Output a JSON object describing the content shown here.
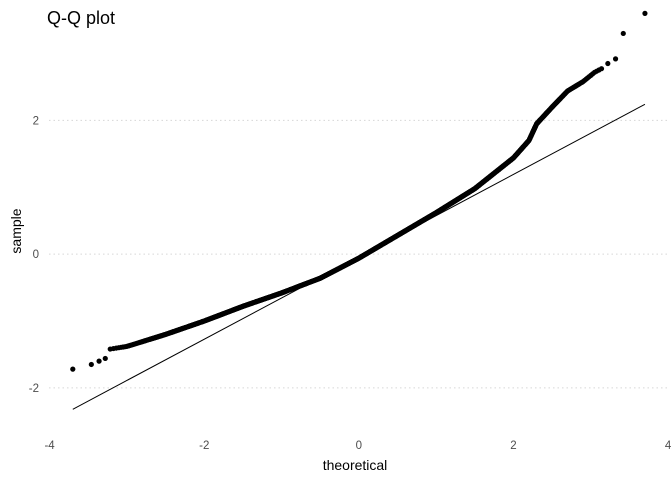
{
  "chart_data": {
    "type": "scatter",
    "title": "Q-Q plot",
    "xlabel": "theoretical",
    "ylabel": "sample",
    "xlim": [
      -4.15,
      4.05
    ],
    "ylim": [
      -2.6,
      3.8
    ],
    "x_ticks": [
      -4,
      -2,
      0,
      2,
      4
    ],
    "x_tick_labels": [
      "-4",
      "-2",
      "0",
      "2",
      "4"
    ],
    "y_ticks": [
      -2,
      0,
      2
    ],
    "y_tick_labels": [
      "-2",
      "0",
      "2"
    ],
    "grid": "horizontal dotted lines at y ticks",
    "legend": "none",
    "colors": {
      "points": "#000000",
      "reference_line": "#000000",
      "grid": "#d6d6d6"
    },
    "reference_line": {
      "x": [
        -3.7,
        3.7
      ],
      "y": [
        -2.32,
        2.24
      ]
    },
    "quantile_curve": [
      [
        -3.22,
        -1.42
      ],
      [
        -3.0,
        -1.38
      ],
      [
        -2.5,
        -1.2
      ],
      [
        -2.0,
        -1.0
      ],
      [
        -1.5,
        -0.78
      ],
      [
        -1.0,
        -0.58
      ],
      [
        -0.5,
        -0.36
      ],
      [
        0.0,
        -0.06
      ],
      [
        0.5,
        0.28
      ],
      [
        1.0,
        0.62
      ],
      [
        1.5,
        0.98
      ],
      [
        2.0,
        1.44
      ],
      [
        2.2,
        1.7
      ],
      [
        2.3,
        1.95
      ],
      [
        2.5,
        2.2
      ],
      [
        2.7,
        2.44
      ],
      [
        2.9,
        2.58
      ],
      [
        3.05,
        2.72
      ],
      [
        3.15,
        2.78
      ]
    ],
    "sample_points": {
      "count": 10000,
      "theoretical_range": [
        -3.22,
        3.15
      ]
    },
    "tail_points": [
      {
        "x": -3.7,
        "y": -1.72
      },
      {
        "x": -3.46,
        "y": -1.65
      },
      {
        "x": -3.36,
        "y": -1.6
      },
      {
        "x": -3.28,
        "y": -1.56
      },
      {
        "x": 3.22,
        "y": 2.85
      },
      {
        "x": 3.32,
        "y": 2.92
      },
      {
        "x": 3.42,
        "y": 3.3
      },
      {
        "x": 3.7,
        "y": 3.6
      }
    ]
  }
}
